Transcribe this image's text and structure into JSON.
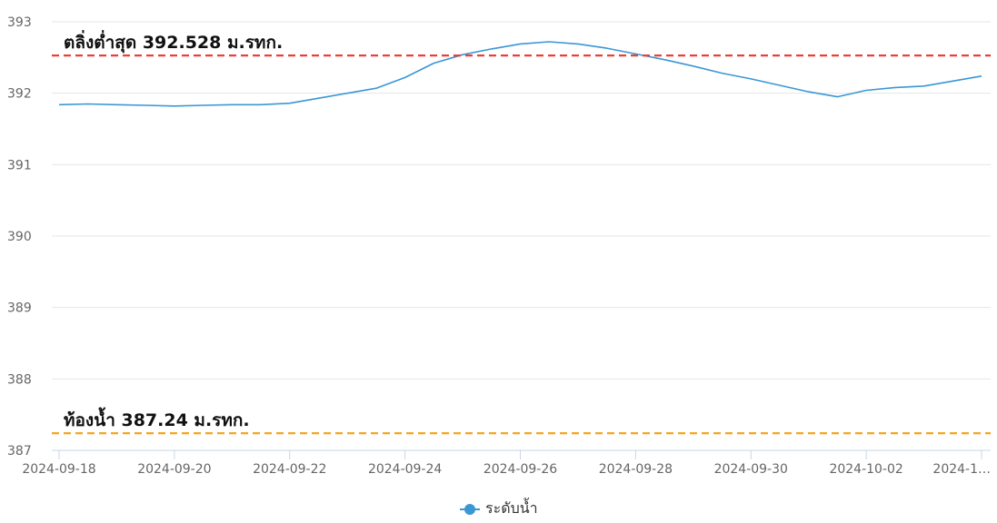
{
  "chart_data": {
    "type": "line",
    "y_ticks": [
      393,
      392,
      391,
      390,
      389,
      388,
      387
    ],
    "ylim": [
      387,
      393
    ],
    "x_ticks": [
      "2024-09-18",
      "2024-09-20",
      "2024-09-22",
      "2024-09-24",
      "2024-09-26",
      "2024-09-28",
      "2024-09-30",
      "2024-10-02",
      "2024-1…"
    ],
    "xlim": [
      "2024-09-18",
      "2024-10-04"
    ],
    "grid": true,
    "legend_position": "bottom-center",
    "series": [
      {
        "name": "ระดับน้ำ",
        "color": "#3a97d4",
        "points": [
          [
            "2024-09-18T00:00",
            391.84
          ],
          [
            "2024-09-18T12:00",
            391.85
          ],
          [
            "2024-09-19T00:00",
            391.84
          ],
          [
            "2024-09-19T12:00",
            391.83
          ],
          [
            "2024-09-20T00:00",
            391.82
          ],
          [
            "2024-09-20T12:00",
            391.83
          ],
          [
            "2024-09-21T00:00",
            391.84
          ],
          [
            "2024-09-21T12:00",
            391.84
          ],
          [
            "2024-09-22T00:00",
            391.86
          ],
          [
            "2024-09-22T12:00",
            391.93
          ],
          [
            "2024-09-23T00:00",
            392.0
          ],
          [
            "2024-09-23T12:00",
            392.07
          ],
          [
            "2024-09-24T00:00",
            392.22
          ],
          [
            "2024-09-24T12:00",
            392.42
          ],
          [
            "2024-09-25T00:00",
            392.54
          ],
          [
            "2024-09-25T12:00",
            392.62
          ],
          [
            "2024-09-26T00:00",
            392.69
          ],
          [
            "2024-09-26T12:00",
            392.72
          ],
          [
            "2024-09-27T00:00",
            392.69
          ],
          [
            "2024-09-27T12:00",
            392.63
          ],
          [
            "2024-09-28T00:00",
            392.55
          ],
          [
            "2024-09-28T12:00",
            392.47
          ],
          [
            "2024-09-29T00:00",
            392.38
          ],
          [
            "2024-09-29T12:00",
            392.28
          ],
          [
            "2024-09-30T00:00",
            392.2
          ],
          [
            "2024-09-30T12:00",
            392.11
          ],
          [
            "2024-10-01T00:00",
            392.02
          ],
          [
            "2024-10-01T12:00",
            391.95
          ],
          [
            "2024-10-02T00:00",
            392.04
          ],
          [
            "2024-10-02T12:00",
            392.08
          ],
          [
            "2024-10-03T00:00",
            392.1
          ],
          [
            "2024-10-03T12:00",
            392.17
          ],
          [
            "2024-10-04T00:00",
            392.24
          ]
        ]
      }
    ],
    "reference_lines": [
      {
        "label": "ตลิ่งต่ำสุด 392.528 ม.รทก.",
        "value": 392.528,
        "color": "#e8413c",
        "style": "dashed"
      },
      {
        "label": "ท้องน้ำ 387.24 ม.รทก.",
        "value": 387.24,
        "color": "#f5a623",
        "style": "dashed"
      }
    ]
  },
  "legend": {
    "label": "ระดับน้ำ",
    "color": "#3a97d4"
  }
}
